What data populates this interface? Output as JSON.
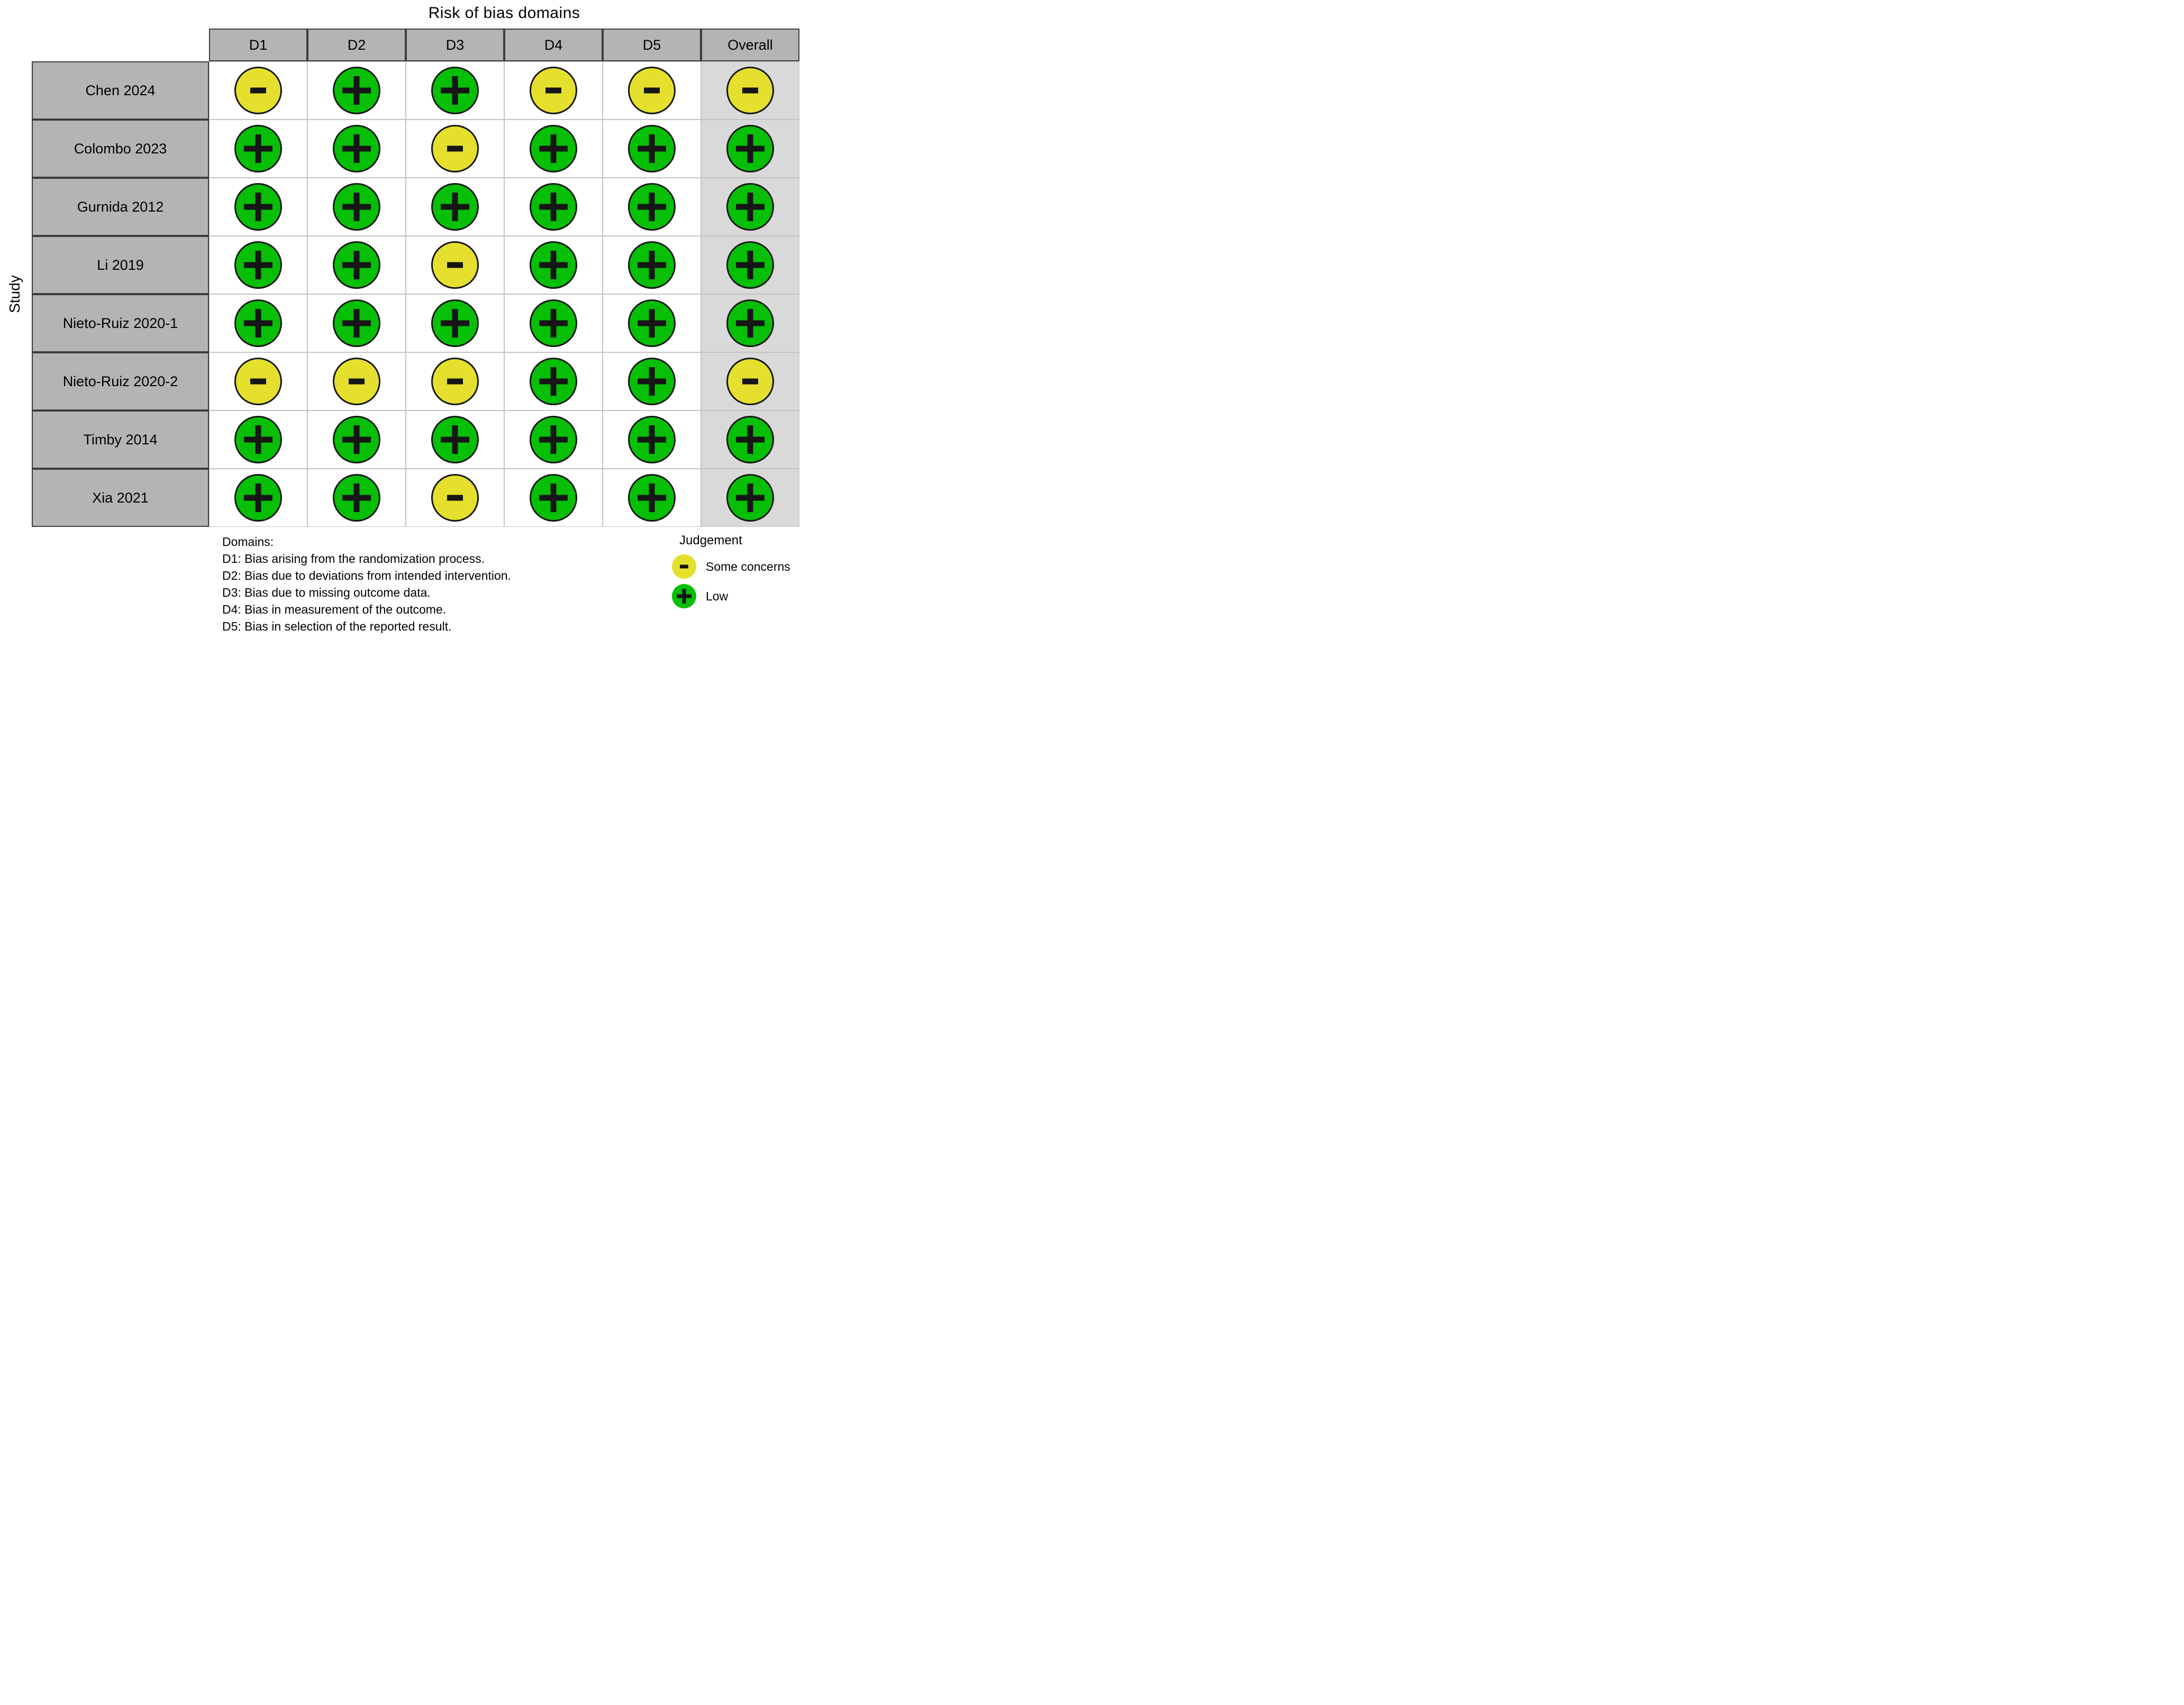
{
  "title": "Risk of bias domains",
  "axis_label": "Study",
  "columns": [
    "D1",
    "D2",
    "D3",
    "D4",
    "D5",
    "Overall"
  ],
  "rows": [
    {
      "study": "Chen 2024",
      "judgements": [
        "some_concerns",
        "low",
        "low",
        "some_concerns",
        "some_concerns",
        "some_concerns"
      ]
    },
    {
      "study": "Colombo 2023",
      "judgements": [
        "low",
        "low",
        "some_concerns",
        "low",
        "low",
        "low"
      ]
    },
    {
      "study": "Gurnida 2012",
      "judgements": [
        "low",
        "low",
        "low",
        "low",
        "low",
        "low"
      ]
    },
    {
      "study": "Li 2019",
      "judgements": [
        "low",
        "low",
        "some_concerns",
        "low",
        "low",
        "low"
      ]
    },
    {
      "study": "Nieto-Ruiz 2020-1",
      "judgements": [
        "low",
        "low",
        "low",
        "low",
        "low",
        "low"
      ]
    },
    {
      "study": "Nieto-Ruiz 2020-2",
      "judgements": [
        "some_concerns",
        "some_concerns",
        "some_concerns",
        "low",
        "low",
        "some_concerns"
      ]
    },
    {
      "study": "Timby 2014",
      "judgements": [
        "low",
        "low",
        "low",
        "low",
        "low",
        "low"
      ]
    },
    {
      "study": "Xia 2021",
      "judgements": [
        "low",
        "low",
        "some_concerns",
        "low",
        "low",
        "low"
      ]
    }
  ],
  "judgement_styles": {
    "low": {
      "symbol": "+",
      "label": "Low",
      "color": "#06bf06"
    },
    "some_concerns": {
      "symbol": "-",
      "label": "Some concerns",
      "color": "#e5e02e"
    }
  },
  "legend": {
    "title": "Judgement",
    "items": [
      {
        "judgement": "some_concerns",
        "label": "Some concerns"
      },
      {
        "judgement": "low",
        "label": "Low"
      }
    ]
  },
  "footnotes": {
    "heading": "Domains:",
    "lines": [
      "D1: Bias arising from the randomization process.",
      "D2: Bias due to deviations from intended intervention.",
      "D3: Bias due to missing outcome data.",
      "D4: Bias in measurement of the outcome.",
      "D5: Bias in selection of the reported result."
    ]
  },
  "colors": {
    "low_green": "#06bf06",
    "some_concerns_yellow": "#e5e02e",
    "header_bg": "#b4b4b4",
    "overall_column_bg": "#d9d9d9",
    "grid_line": "#c3c3c3",
    "dark_border": "#3c3c3c"
  },
  "chart_data": {
    "type": "heatmap",
    "title": "Risk of bias domains",
    "x_categories": [
      "D1",
      "D2",
      "D3",
      "D4",
      "D5",
      "Overall"
    ],
    "y_categories": [
      "Chen 2024",
      "Colombo 2023",
      "Gurnida 2012",
      "Li 2019",
      "Nieto-Ruiz 2020-1",
      "Nieto-Ruiz 2020-2",
      "Timby 2014",
      "Xia 2021"
    ],
    "values": [
      [
        "Some concerns",
        "Low",
        "Low",
        "Some concerns",
        "Some concerns",
        "Some concerns"
      ],
      [
        "Low",
        "Low",
        "Some concerns",
        "Low",
        "Low",
        "Low"
      ],
      [
        "Low",
        "Low",
        "Low",
        "Low",
        "Low",
        "Low"
      ],
      [
        "Low",
        "Low",
        "Some concerns",
        "Low",
        "Low",
        "Low"
      ],
      [
        "Low",
        "Low",
        "Low",
        "Low",
        "Low",
        "Low"
      ],
      [
        "Some concerns",
        "Some concerns",
        "Some concerns",
        "Low",
        "Low",
        "Some concerns"
      ],
      [
        "Low",
        "Low",
        "Low",
        "Low",
        "Low",
        "Low"
      ],
      [
        "Low",
        "Low",
        "Some concerns",
        "Low",
        "Low",
        "Low"
      ]
    ],
    "legend_position": "bottom-right",
    "ylabel": "Study",
    "encoding": {
      "Low": "green circle with plus",
      "Some concerns": "yellow circle with minus"
    }
  }
}
